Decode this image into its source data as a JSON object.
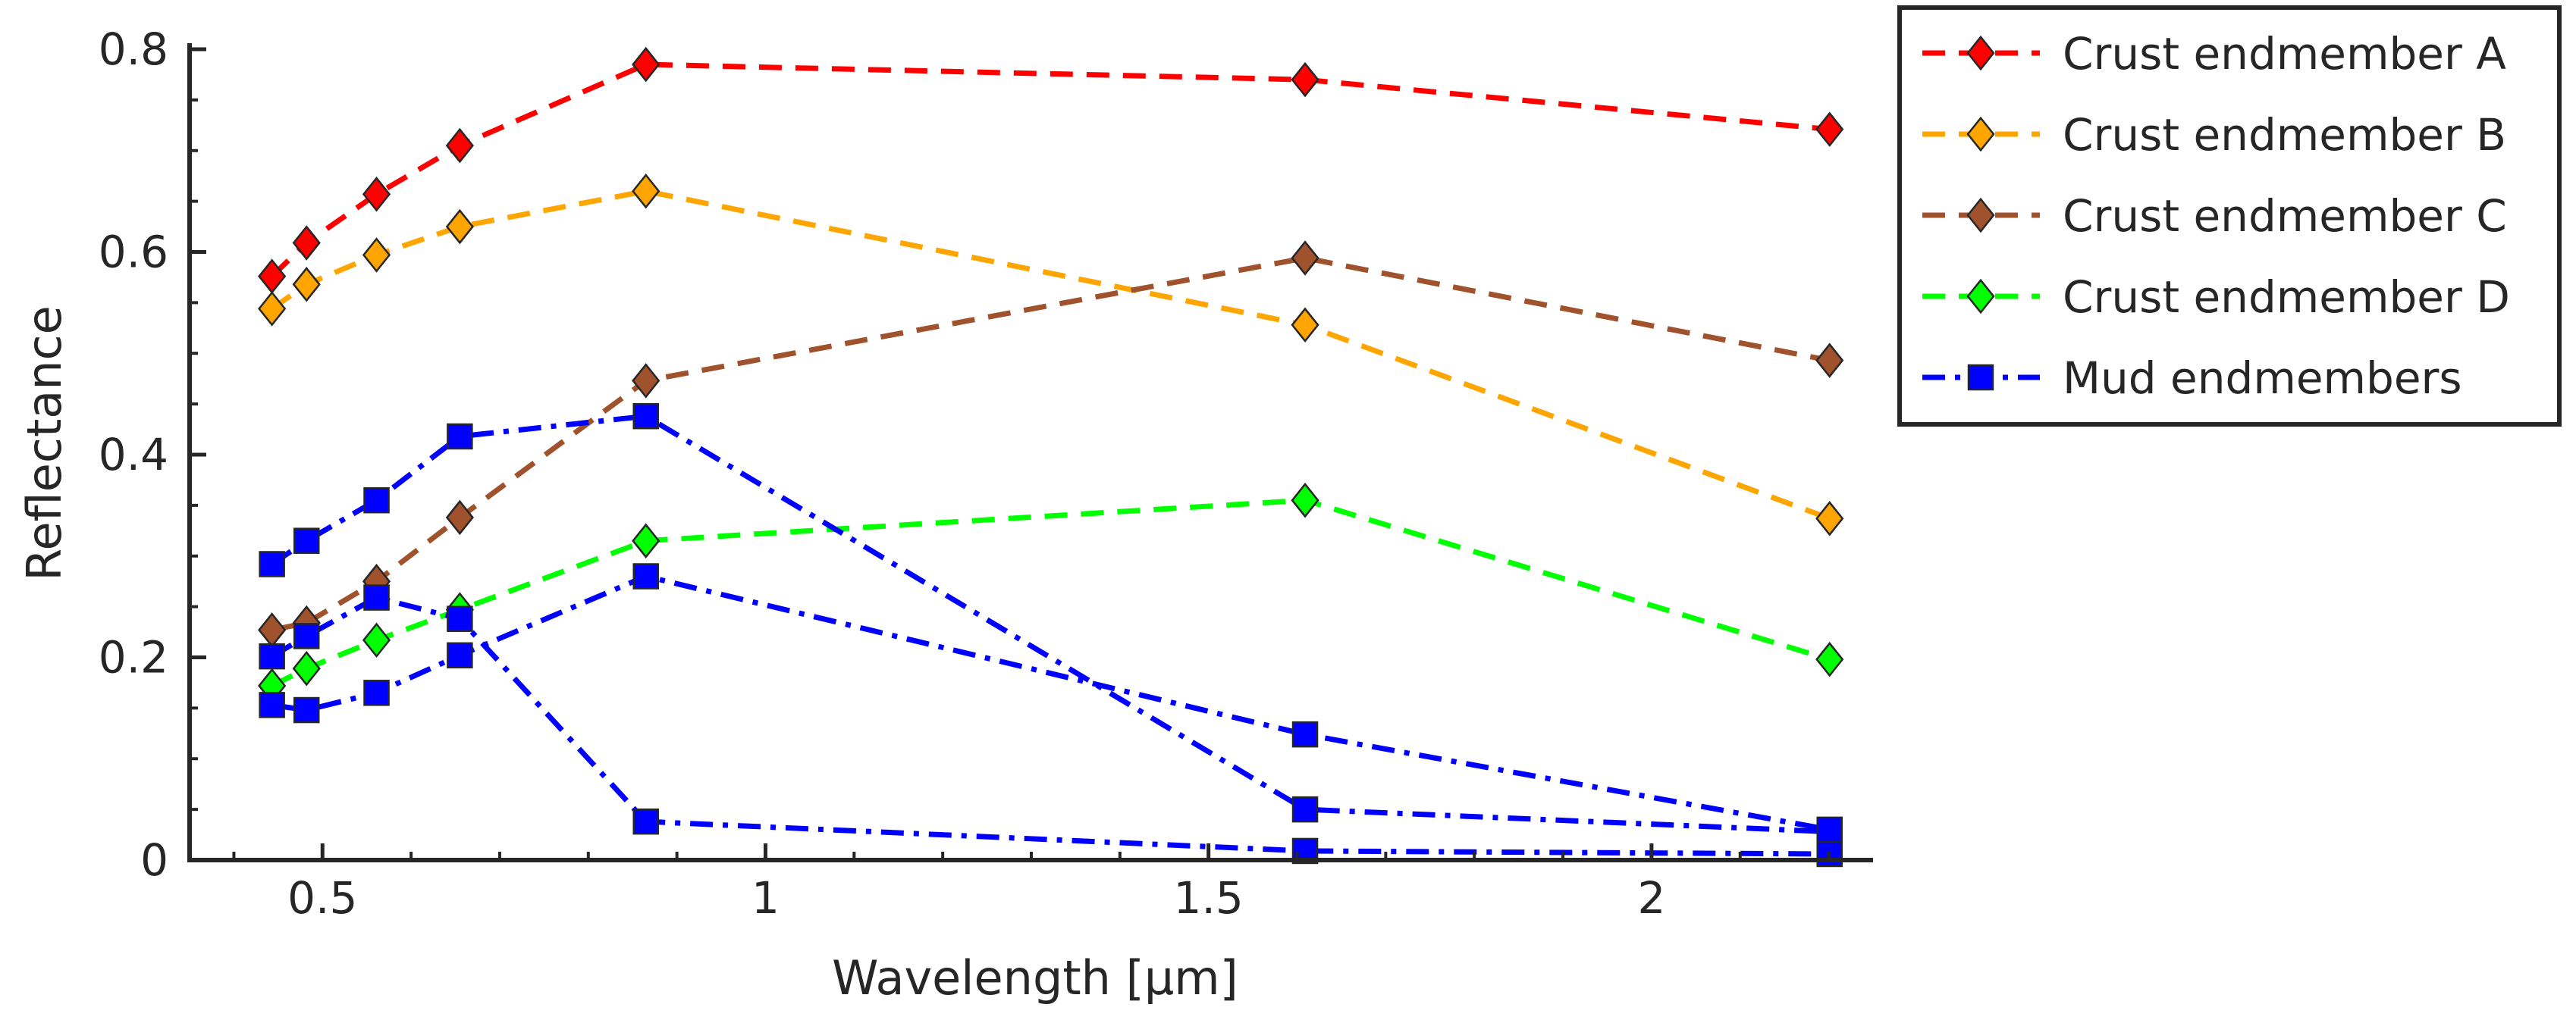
{
  "chart_data": {
    "type": "line",
    "title": "",
    "xlabel": "Wavelength [µm]",
    "ylabel": "Reflectance",
    "xlim": [
      0.35,
      2.25
    ],
    "ylim": [
      0,
      0.8
    ],
    "xticks": [
      {
        "value": 0.5,
        "label": "0.5"
      },
      {
        "value": 1.0,
        "label": "1"
      },
      {
        "value": 1.5,
        "label": "1.5"
      },
      {
        "value": 2.0,
        "label": "2"
      }
    ],
    "yticks": [
      {
        "value": 0.0,
        "label": "0"
      },
      {
        "value": 0.2,
        "label": "0.2"
      },
      {
        "value": 0.4,
        "label": "0.4"
      },
      {
        "value": 0.6,
        "label": "0.6"
      },
      {
        "value": 0.8,
        "label": "0.8"
      }
    ],
    "grid": false,
    "legend_position": "outside-top-right",
    "x": [
      0.443,
      0.482,
      0.561,
      0.655,
      0.865,
      1.609,
      2.201
    ],
    "series": [
      {
        "name": "Crust endmember A",
        "color": "#ff0000",
        "marker": "diamond",
        "linestyle": "dashed",
        "in_legend": true,
        "values": [
          0.576,
          0.609,
          0.657,
          0.705,
          0.785,
          0.77,
          0.721
        ]
      },
      {
        "name": "Crust endmember B",
        "color": "#ffa500",
        "marker": "diamond",
        "linestyle": "dashed",
        "in_legend": true,
        "values": [
          0.544,
          0.568,
          0.597,
          0.625,
          0.66,
          0.528,
          0.337
        ]
      },
      {
        "name": "Crust endmember C",
        "color": "#a0522d",
        "marker": "diamond",
        "linestyle": "dashed",
        "in_legend": true,
        "values": [
          0.227,
          0.234,
          0.275,
          0.338,
          0.473,
          0.594,
          0.493
        ]
      },
      {
        "name": "Crust endmember D",
        "color": "#00ff00",
        "marker": "diamond",
        "linestyle": "dashed",
        "in_legend": true,
        "values": [
          0.172,
          0.189,
          0.217,
          0.247,
          0.315,
          0.355,
          0.198
        ]
      },
      {
        "name": "Mud endmembers",
        "color": "#0000ff",
        "marker": "square",
        "linestyle": "dashdot",
        "in_legend": true,
        "values": [
          0.292,
          0.315,
          0.355,
          0.418,
          0.438,
          0.05,
          0.028
        ]
      },
      {
        "name": "Mud endmembers",
        "color": "#0000ff",
        "marker": "square",
        "linestyle": "dashdot",
        "in_legend": false,
        "values": [
          0.201,
          0.221,
          0.259,
          0.238,
          0.038,
          0.009,
          0.006
        ]
      },
      {
        "name": "Mud endmembers",
        "color": "#0000ff",
        "marker": "square",
        "linestyle": "dashdot",
        "in_legend": false,
        "values": [
          0.153,
          0.148,
          0.165,
          0.202,
          0.28,
          0.124,
          0.03
        ]
      }
    ]
  }
}
